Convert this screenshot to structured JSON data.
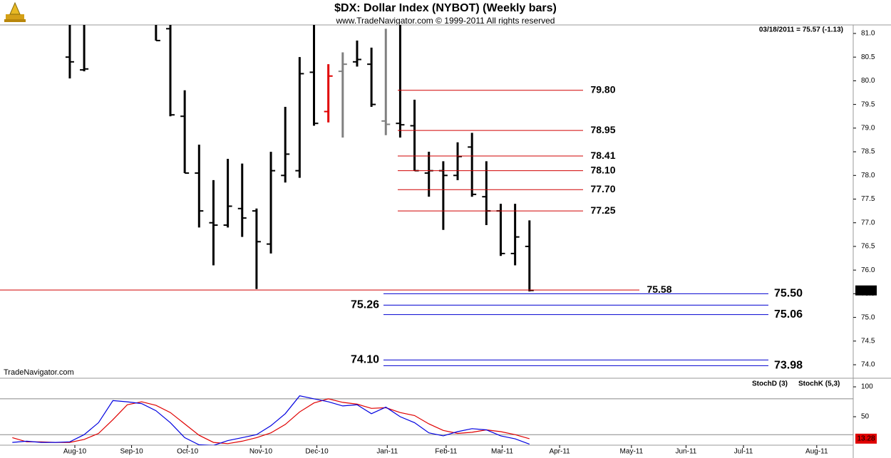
{
  "chart_data": [
    {
      "type": "ohlc",
      "title": "$DX:  Dollar Index (NYBOT)  (Weekly bars)",
      "subtitle": "www.TradeNavigator.com © 1999-2011 All rights reserved",
      "status": "03/18/2011 = 75.57 (-1.13)",
      "watermark": "TradeNavigator.com",
      "x": [
        0,
        1,
        6,
        7,
        8,
        9,
        10,
        11,
        12,
        13,
        14,
        15,
        16,
        17,
        18,
        19,
        20,
        21,
        22,
        23,
        24,
        25,
        26,
        27,
        28,
        29,
        30,
        31,
        32
      ],
      "open": [
        80.5,
        80.23,
        81.2,
        81.1,
        79.25,
        78.05,
        77.0,
        76.95,
        77.3,
        77.25,
        76.55,
        78.0,
        78.1,
        80.18,
        79.35,
        80.2,
        80.4,
        80.35,
        79.15,
        79.1,
        79.05,
        78.05,
        78.1,
        78.0,
        78.6,
        77.55,
        77.25,
        76.35,
        76.5
      ],
      "high": [
        81.3,
        81.3,
        81.3,
        81.3,
        79.8,
        78.65,
        77.9,
        78.35,
        78.25,
        77.3,
        78.5,
        79.45,
        80.5,
        81.2,
        80.35,
        80.6,
        80.85,
        80.7,
        81.1,
        81.3,
        79.6,
        78.5,
        78.3,
        78.7,
        78.9,
        78.3,
        77.4,
        77.4,
        77.05
      ],
      "low": [
        80.05,
        80.2,
        80.85,
        79.25,
        78.05,
        76.9,
        76.1,
        76.9,
        76.7,
        75.6,
        76.35,
        77.85,
        77.95,
        79.05,
        79.12,
        78.8,
        80.3,
        79.45,
        78.85,
        78.8,
        78.1,
        77.55,
        76.85,
        77.9,
        77.55,
        76.95,
        76.3,
        76.1,
        75.55
      ],
      "close": [
        80.4,
        80.25,
        80.85,
        79.28,
        78.05,
        77.25,
        76.95,
        77.35,
        77.1,
        76.6,
        78.1,
        78.45,
        80.15,
        79.1,
        80.1,
        80.35,
        80.45,
        79.5,
        79.08,
        79.07,
        78.1,
        78.1,
        78.0,
        78.4,
        77.6,
        77.25,
        76.35,
        76.7,
        75.57
      ],
      "colors": [
        "#000000",
        "#000000",
        "#000000",
        "#000000",
        "#000000",
        "#000000",
        "#000000",
        "#000000",
        "#000000",
        "#000000",
        "#000000",
        "#000000",
        "#000000",
        "#000000",
        "#e00000",
        "#808080",
        "#000000",
        "#000000",
        "#808080",
        "#000000",
        "#000000",
        "#000000",
        "#000000",
        "#000000",
        "#000000",
        "#000000",
        "#000000",
        "#000000",
        "#000000"
      ],
      "xlim": [
        -4.86,
        54.54
      ],
      "ylim": [
        73.73,
        81.18
      ],
      "yticks": [
        {
          "value": 81,
          "label": "81.0"
        },
        {
          "value": 80.5,
          "label": "80.5"
        },
        {
          "value": 80,
          "label": "80.0"
        },
        {
          "value": 79.5,
          "label": "79.5"
        },
        {
          "value": 79,
          "label": "79.0"
        },
        {
          "value": 78.5,
          "label": "78.5"
        },
        {
          "value": 78,
          "label": "78.0"
        },
        {
          "value": 77.5,
          "label": "77.5"
        },
        {
          "value": 77,
          "label": "77.0"
        },
        {
          "value": 76.5,
          "label": "76.5"
        },
        {
          "value": 76,
          "label": "76.0"
        },
        {
          "value": 75.5,
          "label": "75.5"
        },
        {
          "value": 75,
          "label": "75.0"
        },
        {
          "value": 74.5,
          "label": "74.5"
        },
        {
          "value": 74,
          "label": "74.0"
        }
      ],
      "levels": [
        {
          "value": 79.8,
          "label": "79.80",
          "color": "#d00000",
          "label_position": "right"
        },
        {
          "value": 78.95,
          "label": "78.95",
          "color": "#d00000",
          "label_position": "right"
        },
        {
          "value": 78.41,
          "label": "78.41",
          "color": "#d00000",
          "label_position": "right"
        },
        {
          "value": 78.1,
          "label": "78.10",
          "color": "#d00000",
          "label_position": "right"
        },
        {
          "value": 77.7,
          "label": "77.70",
          "color": "#d00000",
          "label_position": "right"
        },
        {
          "value": 77.25,
          "label": "77.25",
          "color": "#d00000",
          "label_position": "right"
        },
        {
          "value": 75.58,
          "label": "75.58",
          "color": "#d00000",
          "label_position": "right"
        },
        {
          "value": 75.5,
          "label": "75.50",
          "color": "#0000d0",
          "label_position": "right"
        },
        {
          "value": 75.26,
          "label": "75.26",
          "color": "#0000d0",
          "label_position": "left"
        },
        {
          "value": 75.06,
          "label": "75.06",
          "color": "#0000d0",
          "label_position": "right"
        },
        {
          "value": 74.1,
          "label": "74.10",
          "color": "#0000d0",
          "label_position": "left"
        },
        {
          "value": 73.98,
          "label": "73.98",
          "color": "#0000d0",
          "label_position": "right"
        }
      ],
      "last": {
        "value": 75.57,
        "label": "75.57"
      }
    },
    {
      "type": "line",
      "x": [
        -4,
        -3,
        -2,
        -1,
        0,
        1,
        2,
        3,
        4,
        5,
        6,
        7,
        8,
        9,
        10,
        11,
        12,
        13,
        14,
        15,
        16,
        17,
        18,
        19,
        20,
        21,
        22,
        23,
        24,
        25,
        26,
        27,
        28,
        29,
        30,
        31,
        32
      ],
      "series": [
        {
          "name": "StochD (3)",
          "color": "#e00000",
          "values": [
            15,
            8,
            8,
            7,
            7,
            12,
            22,
            45,
            70,
            75,
            69,
            57,
            38,
            19,
            7,
            5,
            9,
            15,
            23,
            37,
            58,
            73,
            80,
            74,
            71,
            64,
            65,
            57,
            52,
            38,
            27,
            22,
            24,
            28,
            25,
            20,
            13.28
          ]
        },
        {
          "name": "StochK (5,3)",
          "color": "#0000e0",
          "values": [
            7,
            9,
            7,
            7,
            8,
            20,
            40,
            77,
            75,
            72,
            60,
            40,
            15,
            3,
            2,
            10,
            15,
            20,
            35,
            55,
            85,
            80,
            75,
            68,
            70,
            55,
            66,
            50,
            40,
            23,
            18,
            25,
            30,
            28,
            18,
            13,
            4
          ]
        }
      ],
      "xlim": [
        -4.86,
        54.54
      ],
      "xticks": [
        {
          "value": 0.35,
          "label": "Aug-10"
        },
        {
          "value": 4.3,
          "label": "Sep-10"
        },
        {
          "value": 8.2,
          "label": "Oct-10"
        },
        {
          "value": 13.3,
          "label": "Nov-10"
        },
        {
          "value": 17.2,
          "label": "Dec-10"
        },
        {
          "value": 22.1,
          "label": "Jan-11"
        },
        {
          "value": 26.2,
          "label": "Feb-11"
        },
        {
          "value": 30.1,
          "label": "Mar-11"
        },
        {
          "value": 34.1,
          "label": "Apr-11"
        },
        {
          "value": 39.1,
          "label": "May-11"
        },
        {
          "value": 42.9,
          "label": "Jun-11"
        },
        {
          "value": 46.9,
          "label": "Jul-11"
        },
        {
          "value": 52,
          "label": "Aug-11"
        }
      ],
      "ylim": [
        0,
        112
      ],
      "yticks": [
        100,
        50
      ],
      "levels": [
        80,
        20
      ]
    }
  ]
}
